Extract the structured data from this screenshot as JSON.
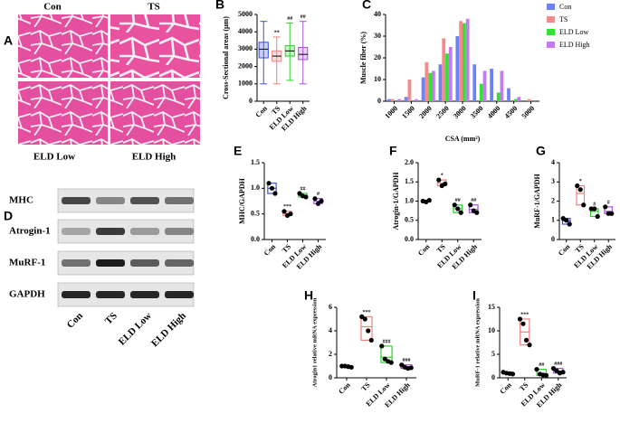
{
  "panel_a": {
    "label": "A",
    "images": [
      "Con",
      "TS",
      "ELD Low",
      "ELD High"
    ]
  },
  "blot": {
    "label": "D",
    "rows": [
      "MHC",
      "Atrogin-1",
      "MuRF-1",
      "GAPDH"
    ],
    "lanes": [
      "Con",
      "TS",
      "ELD Low",
      "ELD High"
    ]
  },
  "chart_data": [
    {
      "type": "box",
      "label": "B",
      "y_label": "Cross-Sectional areas (μm)",
      "categories": [
        "Con",
        "TS",
        "ELD Low",
        "ELD High"
      ],
      "colors": [
        "#3b4fd8",
        "#f08080",
        "#2bd12b",
        "#a64fd8"
      ],
      "min": [
        1000,
        1000,
        1200,
        1000
      ],
      "q1": [
        2500,
        2300,
        2600,
        2400
      ],
      "median": [
        3000,
        2600,
        2900,
        2700
      ],
      "q3": [
        3400,
        2900,
        3200,
        3100
      ],
      "max": [
        4600,
        3700,
        4500,
        4600
      ],
      "significance": [
        null,
        "**",
        "##",
        "##"
      ],
      "ylim": [
        0,
        5000
      ],
      "yticks": [
        0,
        1000,
        2000,
        3000,
        4000,
        5000
      ]
    },
    {
      "type": "bar",
      "label": "C",
      "x_label": "CSA (mm²)",
      "y_label": "Muscle fiber (%)",
      "categories": [
        "1000",
        "1500",
        "2000",
        "2500",
        "3000",
        "3500",
        "4000",
        "4500",
        "5000"
      ],
      "series": [
        {
          "name": "Con",
          "color": "#6f82f5",
          "values": [
            1,
            2,
            11,
            17,
            30,
            17,
            15,
            6,
            0
          ]
        },
        {
          "name": "TS",
          "color": "#f58a8a",
          "values": [
            1,
            10,
            18,
            29,
            37,
            0,
            0,
            0,
            1
          ]
        },
        {
          "name": "ELD Low",
          "color": "#33e033",
          "values": [
            0,
            0,
            13,
            22,
            36,
            8,
            4,
            1,
            0
          ]
        },
        {
          "name": "ELD High",
          "color": "#c37cf0",
          "values": [
            1,
            1,
            14,
            25,
            38,
            14,
            14,
            2,
            0
          ]
        }
      ],
      "ylim": [
        0,
        40
      ],
      "yticks": [
        0,
        10,
        20,
        30,
        40
      ]
    },
    {
      "type": "dot",
      "label": "E",
      "y_label": "MHC/GAPDH",
      "categories": [
        "Con",
        "TS",
        "ELD Low",
        "ELD High"
      ],
      "colors": [
        "#3b4fd8",
        "#f08080",
        "#2bd12b",
        "#a64fd8"
      ],
      "points": [
        [
          1.1,
          1.0,
          0.9
        ],
        [
          0.55,
          0.47,
          0.5
        ],
        [
          0.9,
          0.85,
          0.83
        ],
        [
          0.8,
          0.7,
          0.75
        ]
      ],
      "significance": [
        null,
        "***",
        "##",
        "#"
      ],
      "ylim": [
        0,
        1.5
      ],
      "yticks": [
        {
          "value": 0,
          "label": "0.0"
        },
        0.5,
        {
          "value": 1,
          "label": "1.0"
        },
        1.5
      ]
    },
    {
      "type": "dot",
      "label": "F",
      "y_label": "Atrogin-1/GAPDH",
      "categories": [
        "Con",
        "TS",
        "ELD Low",
        "ELD High"
      ],
      "colors": [
        "#3b4fd8",
        "#f08080",
        "#2bd12b",
        "#a64fd8"
      ],
      "points": [
        [
          1.0,
          0.98,
          1.02
        ],
        [
          1.55,
          1.4,
          1.45
        ],
        [
          0.9,
          0.8,
          0.7
        ],
        [
          0.9,
          0.75,
          0.7
        ]
      ],
      "significance": [
        null,
        "*",
        "##",
        "##"
      ],
      "ylim": [
        0,
        2
      ],
      "yticks": [
        {
          "value": 0,
          "label": "0.0"
        },
        0.5,
        {
          "value": 1,
          "label": "1.0"
        },
        1.5,
        {
          "value": 2,
          "label": "2.0"
        }
      ]
    },
    {
      "type": "dot",
      "label": "G",
      "y_label": "MuRF-1/GAPDH",
      "categories": [
        "Con",
        "TS",
        "ELD Low",
        "ELD High"
      ],
      "colors": [
        "#3b4fd8",
        "#f08080",
        "#2bd12b",
        "#a64fd8"
      ],
      "points": [
        [
          1.1,
          1.0,
          0.8
        ],
        [
          2.8,
          2.6,
          1.8
        ],
        [
          1.6,
          1.6,
          1.2
        ],
        [
          1.7,
          1.35,
          1.35
        ]
      ],
      "significance": [
        null,
        "*",
        "#",
        "#"
      ],
      "ylim": [
        0,
        4
      ],
      "yticks": [
        0,
        1,
        2,
        3,
        4
      ]
    },
    {
      "type": "dot",
      "label": "H",
      "y_label": "Atrogin1 relative mRNA expression",
      "categories": [
        "Con",
        "TS",
        "ELD Low",
        "ELD High"
      ],
      "colors": [
        "#3b4fd8",
        "#f08080",
        "#2bd12b",
        "#a64fd8"
      ],
      "points": [
        [
          1.0,
          1.0,
          0.95,
          0.9
        ],
        [
          5.2,
          5.0,
          4.0,
          3.2
        ],
        [
          2.7,
          1.6,
          1.4,
          1.3
        ],
        [
          1.1,
          0.9,
          0.8,
          0.85
        ]
      ],
      "significance": [
        null,
        "***",
        "###",
        "###"
      ],
      "ylim": [
        0,
        6
      ],
      "yticks": [
        0,
        2,
        4,
        6
      ]
    },
    {
      "type": "dot",
      "label": "I",
      "y_label": "MuRF-1 relative mRNA expression",
      "categories": [
        "Con",
        "TS",
        "ELD Low",
        "ELD High"
      ],
      "colors": [
        "#3b4fd8",
        "#f08080",
        "#2bd12b",
        "#a64fd8"
      ],
      "points": [
        [
          1.2,
          1.0,
          0.9,
          0.8
        ],
        [
          12.5,
          11.5,
          8,
          7
        ],
        [
          1.8,
          0.8,
          0.6,
          0.5
        ],
        [
          2.0,
          1.5,
          1.0,
          1.2
        ]
      ],
      "significance": [
        null,
        "***",
        "##",
        "###"
      ],
      "ylim": [
        0,
        15
      ],
      "yticks": [
        0,
        5,
        10,
        15
      ]
    }
  ]
}
